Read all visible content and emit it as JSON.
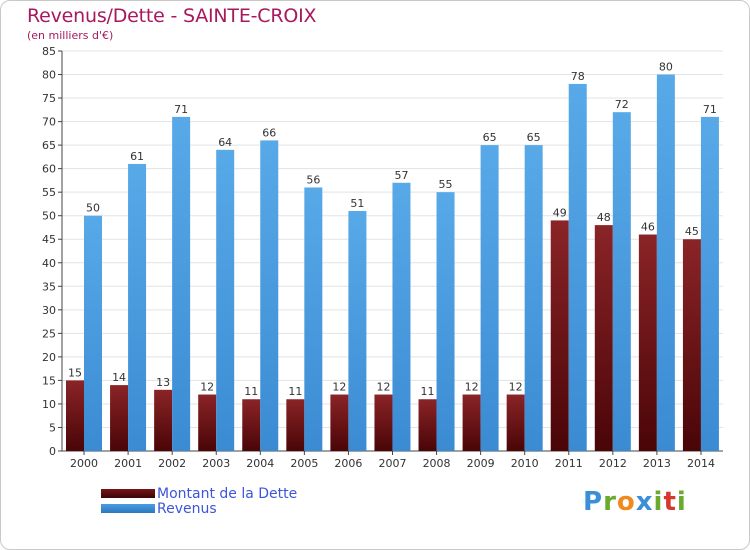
{
  "header": {
    "title": "Revenus/Dette - SAINTE-CROIX",
    "subtitle": "(en milliers d'€)"
  },
  "legend": {
    "items": [
      {
        "label": "Montant de la Dette",
        "color": "#7a1518"
      },
      {
        "label": "Revenus",
        "color": "#4a9de0"
      }
    ]
  },
  "logo": {
    "text": "Proxiti",
    "letters": [
      "P",
      "r",
      "o",
      "x",
      "i",
      "t",
      "i"
    ],
    "colors": [
      "#3a8fd6",
      "#6aaa2e",
      "#f08a1d",
      "#3a8fd6",
      "#6aaa2e",
      "#d6382e",
      "#6aaa2e"
    ]
  },
  "chart_data": {
    "type": "bar",
    "categories": [
      "2000",
      "2001",
      "2002",
      "2003",
      "2004",
      "2005",
      "2006",
      "2007",
      "2008",
      "2009",
      "2010",
      "2011",
      "2012",
      "2013",
      "2014"
    ],
    "series": [
      {
        "name": "Montant de la Dette",
        "color": "#7a1518",
        "values": [
          15,
          14,
          13,
          12,
          11,
          11,
          12,
          12,
          11,
          12,
          12,
          49,
          48,
          46,
          45
        ]
      },
      {
        "name": "Revenus",
        "color": "#4a9de0",
        "values": [
          50,
          61,
          71,
          64,
          66,
          56,
          51,
          57,
          55,
          65,
          65,
          78,
          72,
          80,
          71
        ]
      }
    ],
    "ylim": [
      0,
      85
    ],
    "yticks": [
      0,
      5,
      10,
      15,
      20,
      25,
      30,
      35,
      40,
      45,
      50,
      55,
      60,
      65,
      70,
      75,
      80,
      85
    ],
    "grid": true,
    "legend_position": "bottom-left"
  }
}
